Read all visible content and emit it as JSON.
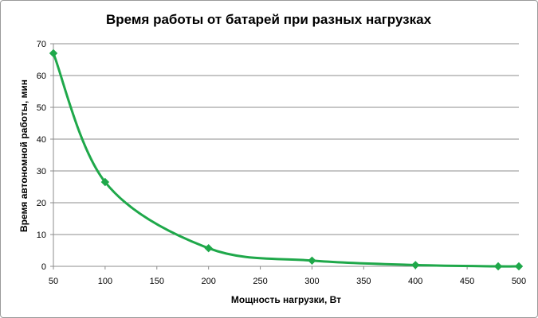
{
  "chart_data": {
    "type": "line",
    "title": "Время работы  от батарей  при разных  нагрузках",
    "xlabel": "Мощность нагрузки, Вт",
    "ylabel": "Время автономной работы, мин",
    "xlim": [
      50,
      500
    ],
    "ylim": [
      0,
      70
    ],
    "xticks": [
      50,
      100,
      150,
      200,
      250,
      300,
      350,
      400,
      450,
      500
    ],
    "yticks": [
      0,
      10,
      20,
      30,
      40,
      50,
      60,
      70
    ],
    "grid": "horizontal",
    "smooth": true,
    "marker": "diamond",
    "color": "#1fa84a",
    "series": [
      {
        "x": [
          50,
          100,
          200,
          300,
          400,
          480,
          500
        ],
        "y": [
          67,
          26.5,
          5.7,
          1.8,
          0.4,
          0,
          0
        ]
      }
    ]
  }
}
